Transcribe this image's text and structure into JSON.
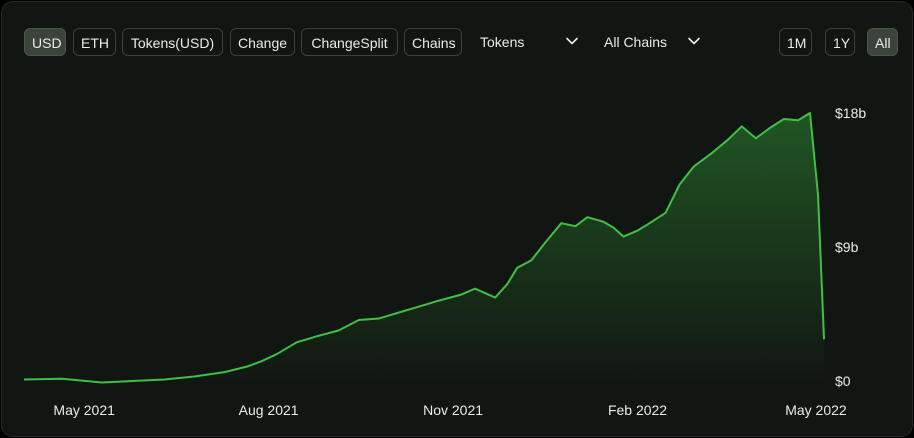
{
  "toolbar": {
    "denomination_buttons": [
      {
        "label": "USD",
        "active": true
      },
      {
        "label": "ETH",
        "active": false
      },
      {
        "label": "Tokens(USD)",
        "active": false
      },
      {
        "label": "Change",
        "active": false
      },
      {
        "label": "ChangeSplit",
        "active": false
      },
      {
        "label": "Chains",
        "active": false
      }
    ],
    "tokens_dropdown": {
      "label": "Tokens",
      "icon": "chevron-down-icon"
    },
    "chains_dropdown": {
      "label": "All Chains",
      "icon": "chevron-down-icon"
    },
    "range_buttons": [
      {
        "label": "1M",
        "active": false
      },
      {
        "label": "1Y",
        "active": false
      },
      {
        "label": "All",
        "active": true
      }
    ]
  },
  "colors": {
    "line": "#3fbf46",
    "fill": "#2c8a32",
    "background": "#121612",
    "text": "#e9ece9"
  },
  "chart_data": {
    "type": "area",
    "title": "",
    "xlabel": "",
    "ylabel": "",
    "xlim": [
      "2021-04-01",
      "2022-05-06"
    ],
    "ylim": [
      0,
      18
    ],
    "y_unit": "billion USD",
    "x_ticks": [
      {
        "date": "2021-05-01",
        "label": "May 2021"
      },
      {
        "date": "2021-08-01",
        "label": "Aug 2021"
      },
      {
        "date": "2021-11-01",
        "label": "Nov 2021"
      },
      {
        "date": "2022-02-01",
        "label": "Feb 2022"
      },
      {
        "date": "2022-05-01",
        "label": "May 2022"
      }
    ],
    "y_ticks": [
      {
        "value": 0,
        "label": "$0"
      },
      {
        "value": 9,
        "label": "$9b"
      },
      {
        "value": 18,
        "label": "$18b"
      }
    ],
    "grid": false,
    "legend": "none",
    "series": [
      {
        "x": [
          "2021-04-01",
          "2021-04-20",
          "2021-05-10",
          "2021-05-25",
          "2021-06-10",
          "2021-06-25",
          "2021-07-10",
          "2021-07-22",
          "2021-07-28",
          "2021-08-05",
          "2021-08-15",
          "2021-08-25",
          "2021-09-05",
          "2021-09-15",
          "2021-09-25",
          "2021-10-05",
          "2021-10-15",
          "2021-10-25",
          "2021-11-05",
          "2021-11-12",
          "2021-11-22",
          "2021-11-28",
          "2021-12-03",
          "2021-12-10",
          "2021-12-17",
          "2021-12-25",
          "2022-01-01",
          "2022-01-07",
          "2022-01-15",
          "2022-01-20",
          "2022-01-25",
          "2022-02-01",
          "2022-02-07",
          "2022-02-15",
          "2022-02-22",
          "2022-03-01",
          "2022-03-10",
          "2022-03-18",
          "2022-03-25",
          "2022-04-01",
          "2022-04-08",
          "2022-04-15",
          "2022-04-22",
          "2022-04-28",
          "2022-05-02",
          "2022-05-05"
        ],
        "y": [
          0.1,
          0.15,
          -0.1,
          0.0,
          0.1,
          0.3,
          0.6,
          1.0,
          1.3,
          1.8,
          2.6,
          3.0,
          3.4,
          4.1,
          4.2,
          4.6,
          5.0,
          5.4,
          5.8,
          6.2,
          5.6,
          6.5,
          7.6,
          8.1,
          9.3,
          10.6,
          10.4,
          11.0,
          10.7,
          10.3,
          9.7,
          10.1,
          10.6,
          11.3,
          13.2,
          14.4,
          15.3,
          16.2,
          17.1,
          16.3,
          17.0,
          17.6,
          17.5,
          18.0,
          12.5,
          2.8
        ]
      }
    ]
  }
}
